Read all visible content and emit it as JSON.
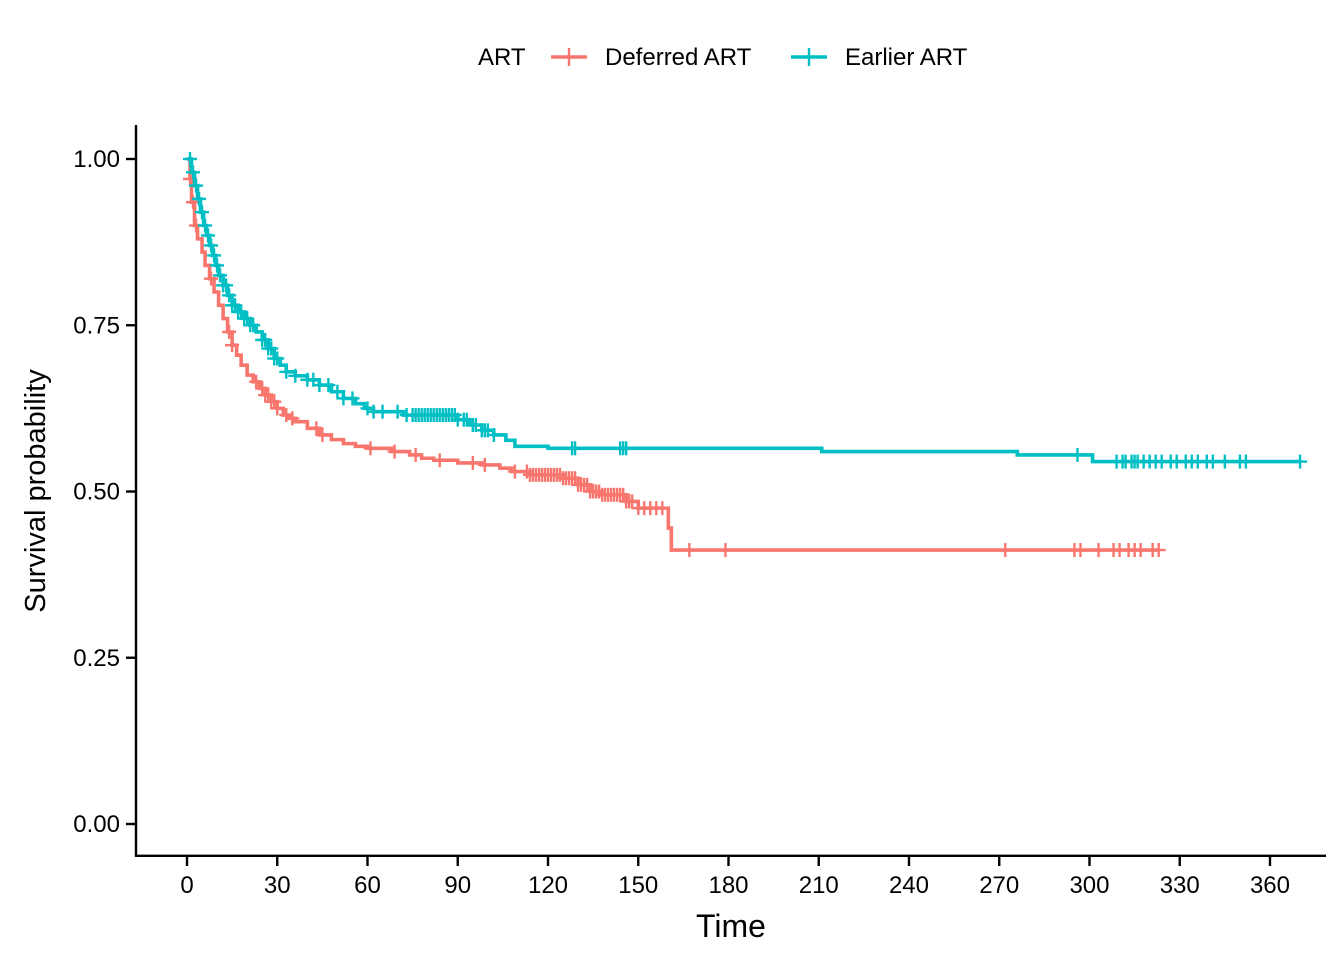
{
  "chart_data": {
    "type": "line",
    "subtype": "kaplan-meier-step",
    "title": "",
    "xlabel": "Time",
    "ylabel": "Survival probability",
    "xlim": [
      0,
      370
    ],
    "ylim": [
      0,
      1
    ],
    "x_ticks": [
      0,
      30,
      60,
      90,
      120,
      150,
      180,
      210,
      240,
      270,
      300,
      330,
      360
    ],
    "y_ticks": [
      0,
      0.25,
      0.5,
      0.75,
      1
    ],
    "y_tick_labels": [
      "0.00",
      "0.25",
      "0.50",
      "0.75",
      "1.00"
    ],
    "grid": false,
    "legend": {
      "position": "top",
      "title": "ART"
    },
    "series": [
      {
        "name": "Deferred ART",
        "color": "#F8766D",
        "steps": [
          [
            0,
            1.0
          ],
          [
            1,
            0.97
          ],
          [
            1.5,
            0.935
          ],
          [
            2.5,
            0.9
          ],
          [
            3.5,
            0.88
          ],
          [
            5,
            0.86
          ],
          [
            6,
            0.84
          ],
          [
            7.5,
            0.82
          ],
          [
            9,
            0.8
          ],
          [
            10.5,
            0.78
          ],
          [
            12,
            0.76
          ],
          [
            13.5,
            0.74
          ],
          [
            15,
            0.72
          ],
          [
            16.5,
            0.705
          ],
          [
            18,
            0.69
          ],
          [
            20,
            0.675
          ],
          [
            22,
            0.665
          ],
          [
            24,
            0.655
          ],
          [
            26,
            0.645
          ],
          [
            28,
            0.635
          ],
          [
            30,
            0.625
          ],
          [
            32,
            0.615
          ],
          [
            34,
            0.61
          ],
          [
            36,
            0.605
          ],
          [
            40,
            0.595
          ],
          [
            44,
            0.585
          ],
          [
            48,
            0.578
          ],
          [
            52,
            0.572
          ],
          [
            56,
            0.568
          ],
          [
            60,
            0.565
          ],
          [
            68,
            0.56
          ],
          [
            74,
            0.555
          ],
          [
            78,
            0.55
          ],
          [
            82,
            0.547
          ],
          [
            90,
            0.543
          ],
          [
            98,
            0.54
          ],
          [
            104,
            0.535
          ],
          [
            108,
            0.53
          ],
          [
            114,
            0.525
          ],
          [
            125,
            0.52
          ],
          [
            130,
            0.51
          ],
          [
            134,
            0.5
          ],
          [
            138,
            0.495
          ],
          [
            146,
            0.485
          ],
          [
            150,
            0.475
          ],
          [
            160,
            0.445
          ],
          [
            161,
            0.412
          ]
        ],
        "end_x": 323,
        "censor_times": [
          1,
          2,
          3,
          8,
          14,
          15,
          23,
          25,
          26,
          27,
          28,
          29,
          30,
          33,
          35,
          43,
          45,
          61,
          69,
          76,
          84,
          95,
          99,
          109,
          113,
          114,
          115,
          116,
          117,
          118,
          119,
          120,
          121,
          122,
          123,
          124,
          125,
          126,
          127,
          128,
          129,
          130,
          131,
          132,
          133,
          134,
          135,
          136,
          137,
          138,
          139,
          140,
          141,
          142,
          143,
          144,
          145,
          146,
          147,
          148,
          150,
          152,
          154,
          156,
          158,
          167,
          179,
          272,
          295,
          297,
          303,
          308,
          310,
          313,
          315,
          317,
          321,
          323
        ]
      },
      {
        "name": "Earlier ART",
        "color": "#00BFC4",
        "steps": [
          [
            0,
            1.0
          ],
          [
            1.5,
            0.98
          ],
          [
            2.5,
            0.96
          ],
          [
            3.5,
            0.94
          ],
          [
            4.5,
            0.92
          ],
          [
            5.5,
            0.9
          ],
          [
            6.5,
            0.885
          ],
          [
            7.5,
            0.87
          ],
          [
            8.5,
            0.855
          ],
          [
            9.5,
            0.84
          ],
          [
            10.5,
            0.825
          ],
          [
            12,
            0.81
          ],
          [
            13.5,
            0.795
          ],
          [
            15,
            0.78
          ],
          [
            17,
            0.77
          ],
          [
            19,
            0.76
          ],
          [
            21,
            0.75
          ],
          [
            23,
            0.74
          ],
          [
            25,
            0.728
          ],
          [
            27,
            0.715
          ],
          [
            29,
            0.7
          ],
          [
            31,
            0.69
          ],
          [
            33,
            0.68
          ],
          [
            36,
            0.674
          ],
          [
            40,
            0.668
          ],
          [
            44,
            0.66
          ],
          [
            48,
            0.65
          ],
          [
            52,
            0.64
          ],
          [
            56,
            0.632
          ],
          [
            59,
            0.625
          ],
          [
            62,
            0.62
          ],
          [
            72,
            0.615
          ],
          [
            90,
            0.608
          ],
          [
            94,
            0.6
          ],
          [
            98,
            0.592
          ],
          [
            102,
            0.585
          ],
          [
            106,
            0.577
          ],
          [
            109,
            0.568
          ],
          [
            120,
            0.565
          ],
          [
            211,
            0.56
          ],
          [
            276,
            0.555
          ],
          [
            301,
            0.545
          ]
        ],
        "end_x": 370,
        "censor_times": [
          1,
          2,
          3,
          4,
          5,
          6,
          7,
          8,
          9,
          10,
          11,
          12,
          13,
          14,
          15,
          16,
          17,
          18,
          19,
          20,
          21,
          22,
          25,
          26,
          27,
          28,
          29,
          30,
          33,
          36,
          40,
          42,
          44,
          47,
          50,
          52,
          55,
          60,
          62,
          65,
          70,
          73,
          75,
          76,
          77,
          78,
          79,
          80,
          81,
          82,
          83,
          84,
          85,
          86,
          87,
          88,
          89,
          90,
          92,
          93,
          95,
          96,
          98,
          99,
          100,
          102,
          128,
          129,
          144,
          145,
          146,
          296,
          309,
          311,
          312,
          314,
          315,
          316,
          318,
          320,
          322,
          324,
          327,
          329,
          332,
          334,
          336,
          339,
          341,
          345,
          350,
          352,
          370
        ]
      }
    ]
  }
}
